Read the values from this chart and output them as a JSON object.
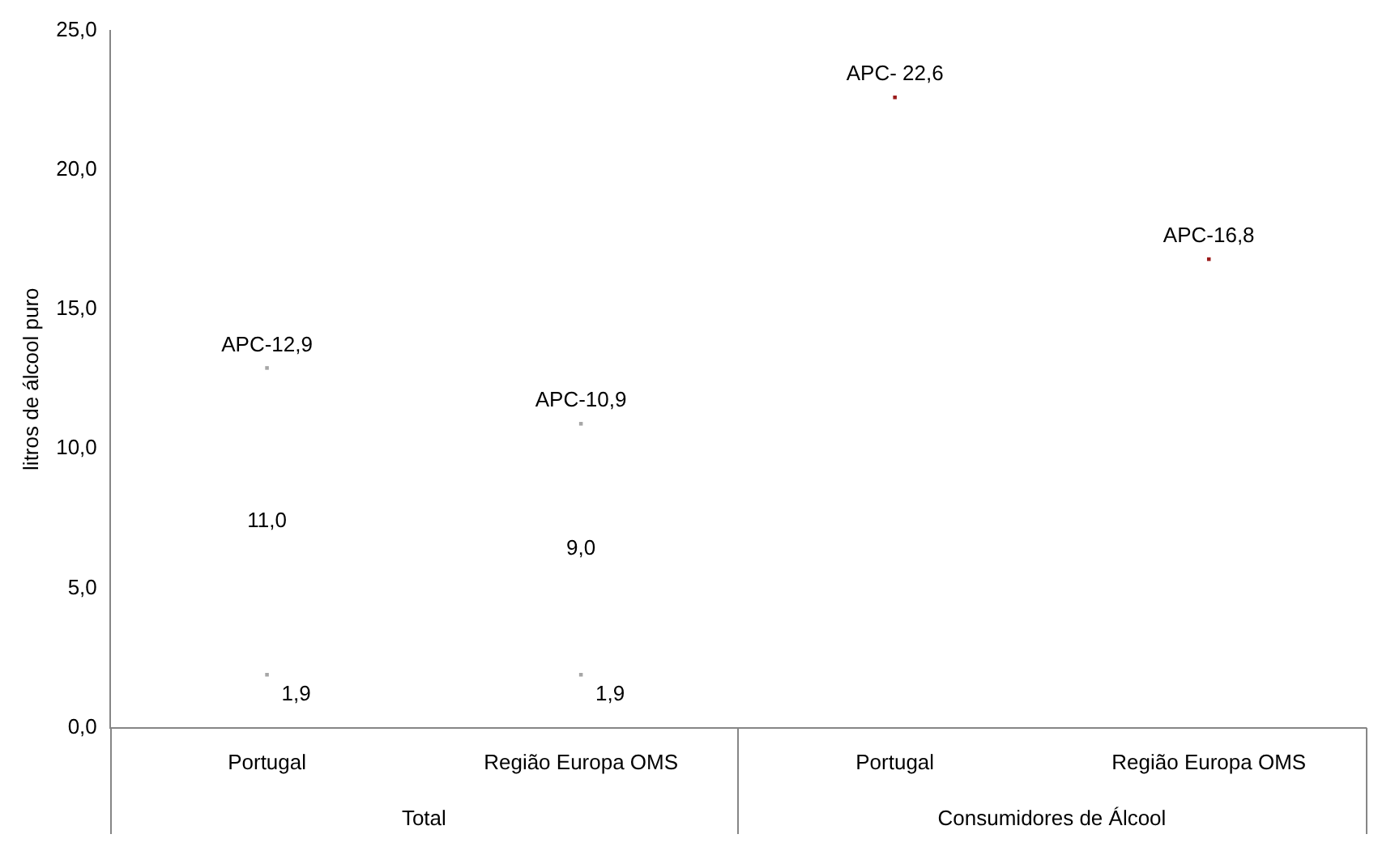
{
  "chart_data": {
    "type": "scatter",
    "marker": "square",
    "ylabel": "litros de álcool puro",
    "categories": [
      "Portugal",
      "Região Europa OMS",
      "Portugal",
      "Região Europa OMS"
    ],
    "series": [
      {
        "colors": [
          "#a6a6a6",
          "#a6a6a6",
          null,
          null
        ],
        "values": [
          1.9,
          1.9,
          null,
          null
        ],
        "value_labels": [
          "1,9",
          "1,9",
          null,
          null
        ]
      },
      {
        "colors": [
          "#a6a6a6",
          "#a6a6a6",
          "#9b1b1b",
          "#9b1b1b"
        ],
        "values": [
          12.9,
          10.9,
          22.6,
          16.8
        ],
        "value_labels": [
          "APC-12,9",
          "APC-10,9",
          "APC- 22,6",
          "APC-16,8"
        ]
      }
    ],
    "annotations": [
      "11,0",
      "9,0",
      "Total",
      "Consumidores de Álcool"
    ],
    "ylim": [
      0,
      25
    ],
    "yticks": [
      {
        "value": 0,
        "label": "0,0"
      },
      {
        "value": 5,
        "label": "5,0"
      },
      {
        "value": 10,
        "label": "10,0"
      },
      {
        "value": 15,
        "label": "15,0"
      },
      {
        "value": 20,
        "label": "20,0"
      },
      {
        "value": 25,
        "label": "25,0"
      }
    ],
    "grid": false,
    "legend": false
  }
}
